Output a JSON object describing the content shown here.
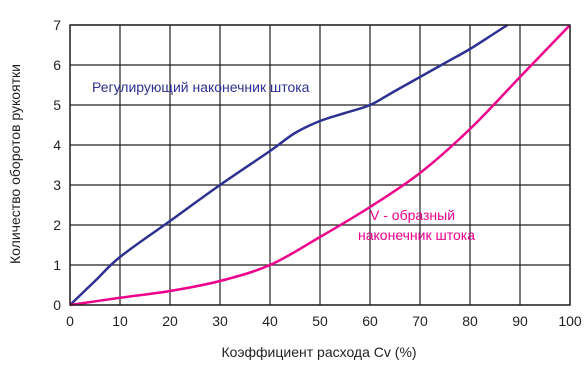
{
  "chart_data": {
    "type": "line",
    "xlabel": "Коэффициент расхода Cv (%)",
    "ylabel": "Количество оборотов рукоятки",
    "xlim": [
      0,
      100
    ],
    "ylim": [
      0,
      7
    ],
    "x_ticks": [
      "0",
      "10",
      "20",
      "30",
      "40",
      "50",
      "60",
      "70",
      "80",
      "90",
      "100"
    ],
    "y_ticks": [
      "0",
      "1",
      "2",
      "3",
      "4",
      "5",
      "6",
      "7"
    ],
    "grid": true,
    "legend": "none",
    "series": [
      {
        "name": "Регулирующий наконечник штока",
        "color": "#2e3192",
        "x": [
          0,
          5,
          10,
          20,
          30,
          40,
          45,
          50,
          55,
          60,
          65,
          70,
          75,
          80,
          85,
          87.5
        ],
        "y": [
          0,
          0.6,
          1.2,
          2.1,
          3.0,
          3.85,
          4.3,
          4.6,
          4.8,
          5.0,
          5.35,
          5.7,
          6.05,
          6.4,
          6.8,
          7.0
        ]
      },
      {
        "name": "V - образный наконечник штока",
        "color": "#ec008c",
        "x": [
          0,
          10,
          20,
          30,
          40,
          50,
          60,
          70,
          80,
          90,
          100
        ],
        "y": [
          0,
          0.18,
          0.35,
          0.6,
          1.0,
          1.7,
          2.45,
          3.3,
          4.4,
          5.7,
          7.0
        ]
      }
    ],
    "annotations": [
      {
        "text": "Регулирующий наконечник штока",
        "color": "#2e3192"
      },
      {
        "text": "V - образный",
        "color": "#ec008c"
      },
      {
        "text": "наконечник штока",
        "color": "#ec008c"
      }
    ]
  }
}
